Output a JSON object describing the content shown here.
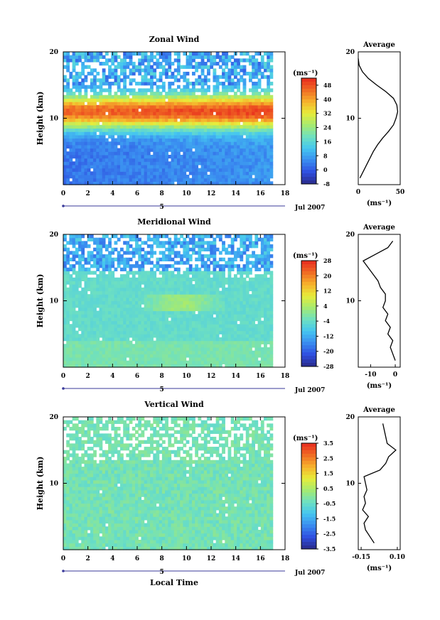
{
  "common": {
    "x_axis_ticks": [
      "0",
      "2",
      "4",
      "6",
      "8",
      "10",
      "12",
      "14",
      "16",
      "18"
    ],
    "x_range": [
      0,
      18
    ],
    "data_end_hour": 17,
    "date_label": "Jul 2007",
    "day_label": "5",
    "height_ticks": [
      "10",
      "20"
    ],
    "height_range": [
      0,
      20
    ],
    "y_axis_label": "Height (km)",
    "x_axis_label": "Local Time",
    "unit_label": "(ms⁻¹)",
    "profile_title": "Average"
  },
  "chart_data": [
    {
      "type": "heatmap",
      "title": "Zonal Wind",
      "xlabel": "",
      "ylabel": "Height (km)",
      "xlim": [
        0,
        18
      ],
      "ylim": [
        0,
        20
      ],
      "colorbar": {
        "label": "(ms⁻¹)",
        "ticks": [
          "48",
          "40",
          "32",
          "24",
          "16",
          "8",
          "0",
          "-8"
        ],
        "range": [
          -8,
          52
        ]
      },
      "profile": {
        "title": "Average",
        "xlabel": "(ms⁻¹)",
        "xticks": [
          "0",
          "50"
        ],
        "xlim": [
          0,
          50
        ],
        "heights": [
          1,
          2,
          3,
          4,
          5,
          6,
          7,
          8,
          9,
          10,
          11,
          12,
          13,
          14,
          15,
          16,
          17,
          18,
          19
        ],
        "values": [
          2,
          6,
          10,
          14,
          18,
          23,
          29,
          36,
          42,
          45,
          47,
          46,
          42,
          33,
          22,
          12,
          5,
          1,
          0
        ]
      }
    },
    {
      "type": "heatmap",
      "title": "Meridional Wind",
      "xlabel": "",
      "ylabel": "Height (km)",
      "xlim": [
        0,
        18
      ],
      "ylim": [
        0,
        20
      ],
      "colorbar": {
        "label": "(ms⁻¹)",
        "ticks": [
          "28",
          "20",
          "12",
          "4",
          "-4",
          "-12",
          "-20",
          "-28"
        ],
        "range": [
          -28,
          28
        ]
      },
      "profile": {
        "title": "Average",
        "xlabel": "(ms⁻¹)",
        "xticks": [
          "-10",
          "0"
        ],
        "xlim": [
          -15,
          2
        ],
        "heights": [
          1,
          2,
          3,
          4,
          5,
          6,
          7,
          8,
          9,
          10,
          11,
          12,
          13,
          14,
          15,
          16,
          17,
          18,
          19
        ],
        "values": [
          0,
          -1,
          -2,
          -1,
          -3,
          -2,
          -4,
          -3,
          -5,
          -4,
          -4,
          -6,
          -7,
          -9,
          -11,
          -13,
          -8,
          -3,
          -1
        ]
      }
    },
    {
      "type": "heatmap",
      "title": "Vertical Wind",
      "xlabel": "Local Time",
      "ylabel": "Height (km)",
      "xlim": [
        0,
        18
      ],
      "ylim": [
        0,
        20
      ],
      "colorbar": {
        "label": "(ms⁻¹)",
        "ticks": [
          "3.5",
          "2.5",
          "1.5",
          "0.5",
          "-0.5",
          "-1.5",
          "-2.5",
          "-3.5"
        ],
        "range": [
          -3.5,
          3.5
        ]
      },
      "profile": {
        "title": "Average",
        "xlabel": "(ms⁻¹)",
        "xticks": [
          "-0.15",
          "0.10"
        ],
        "xlim": [
          -0.17,
          0.12
        ],
        "heights": [
          1,
          2,
          3,
          4,
          5,
          6,
          7,
          8,
          9,
          10,
          11,
          12,
          13,
          14,
          15,
          16,
          17,
          18,
          19
        ],
        "values": [
          -0.06,
          -0.09,
          -0.12,
          -0.13,
          -0.1,
          -0.14,
          -0.12,
          -0.13,
          -0.11,
          -0.12,
          -0.13,
          -0.02,
          0.02,
          0.04,
          0.09,
          0.03,
          0.02,
          0.01,
          0.0
        ]
      }
    }
  ]
}
